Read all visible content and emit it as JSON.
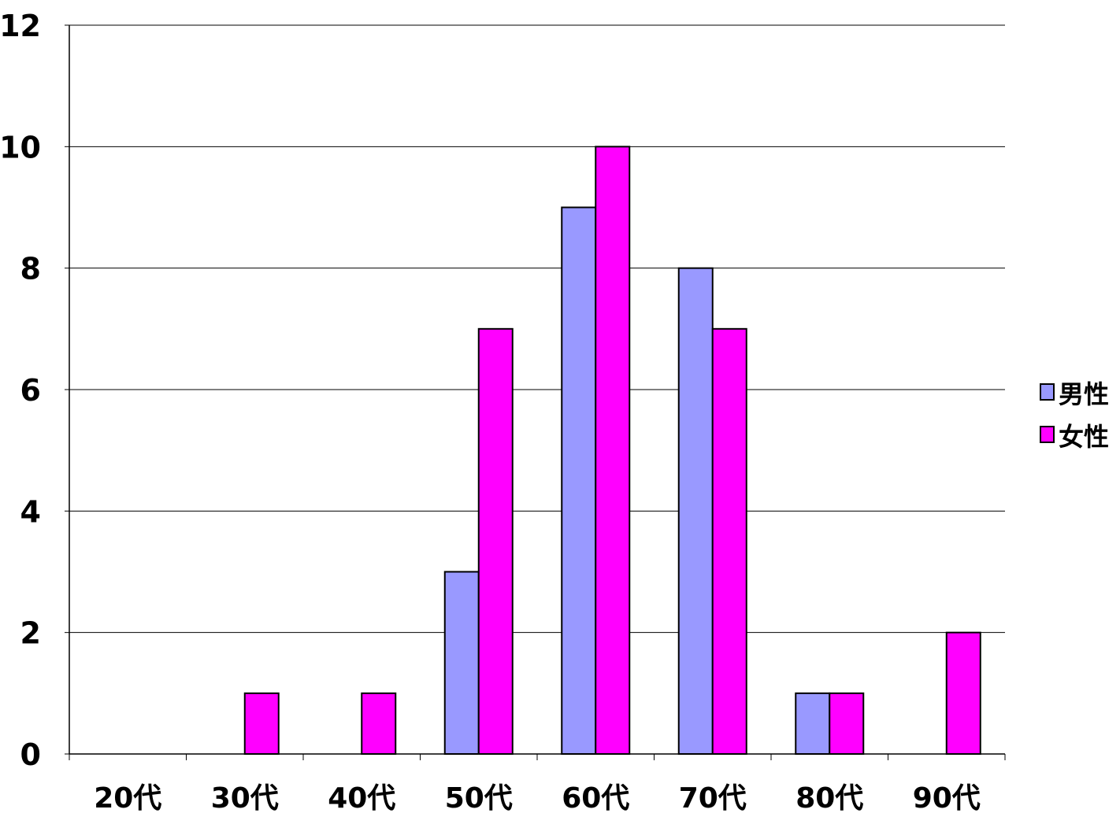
{
  "chart_data": {
    "type": "bar",
    "categories": [
      "20代",
      "30代",
      "40代",
      "50代",
      "60代",
      "70代",
      "80代",
      "90代"
    ],
    "series": [
      {
        "name": "男性",
        "color": "#9999FF",
        "values": [
          0,
          0,
          0,
          3,
          9,
          8,
          1,
          0
        ]
      },
      {
        "name": "女性",
        "color": "#FF00FF",
        "values": [
          0,
          1,
          1,
          7,
          10,
          7,
          1,
          2
        ]
      }
    ],
    "yticks": [
      0,
      2,
      4,
      6,
      8,
      10,
      12
    ],
    "ylim": [
      0,
      12
    ],
    "grid": true,
    "legend_position": "right"
  }
}
